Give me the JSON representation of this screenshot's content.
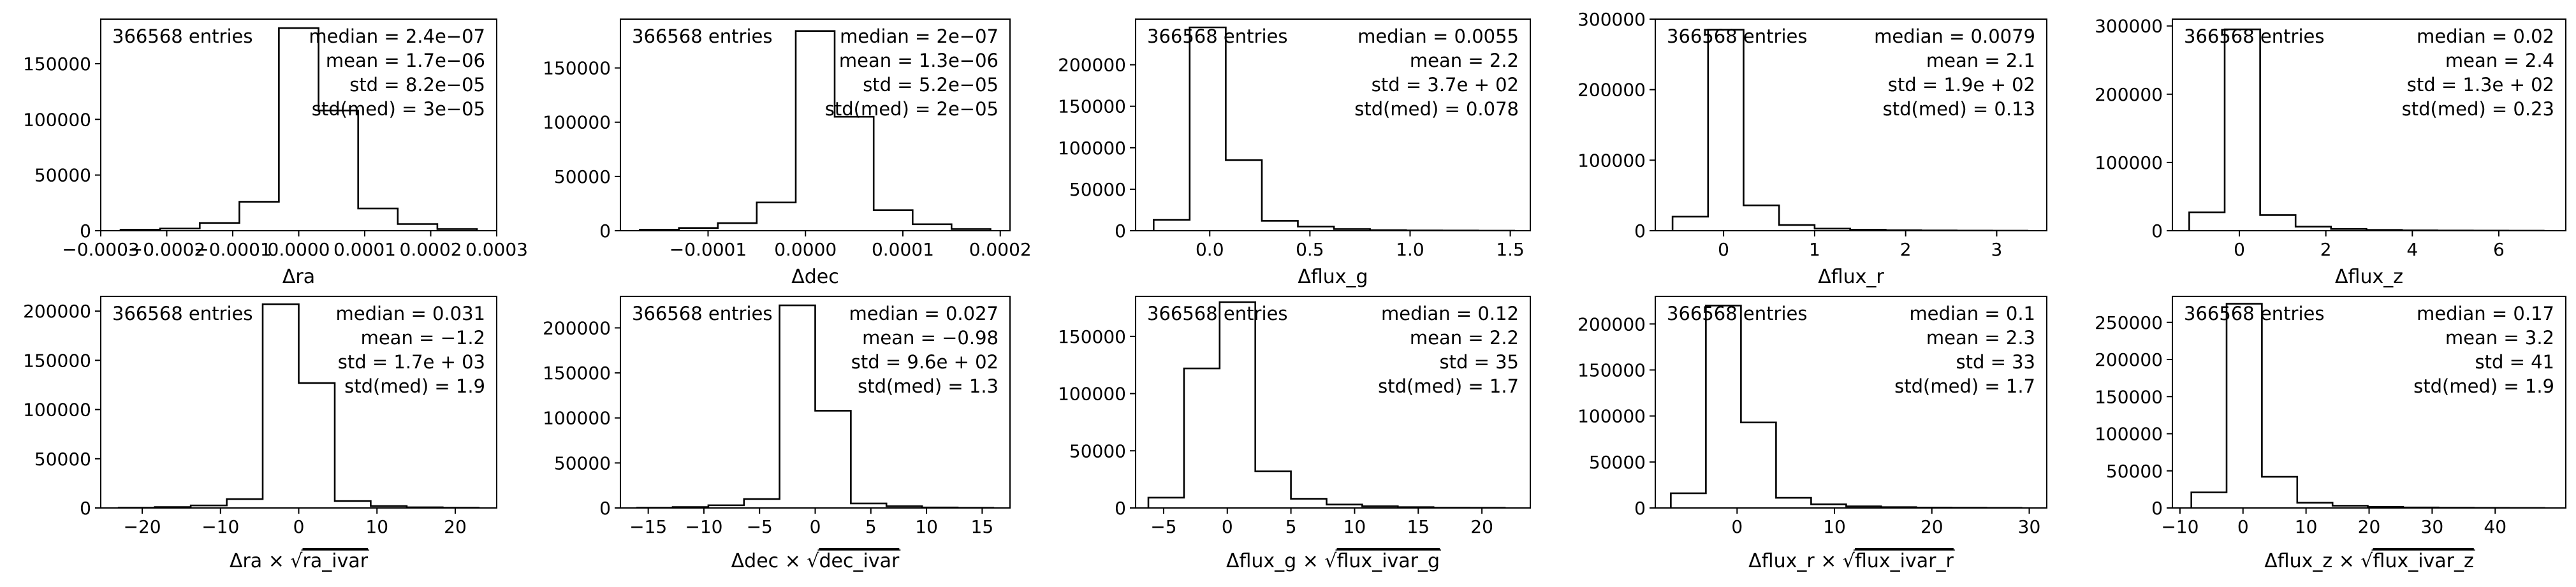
{
  "figure": {
    "background": "#ffffff",
    "line_color": "#000000"
  },
  "chart_data": [
    {
      "type": "histogram",
      "xlabel": "Δra",
      "entries_label": "366568 entries",
      "stats": [
        "median = 2.4e−07",
        "mean = 1.7e−06",
        "std = 8.2e−05",
        "std(med) = 3e−05"
      ],
      "xlim": [
        -0.0003,
        0.0003
      ],
      "ylim": [
        0,
        190000
      ],
      "xticks": [
        -0.0003,
        -0.0002,
        -0.0001,
        0.0,
        0.0001,
        0.0002,
        0.0003
      ],
      "xtick_labels": [
        "−0.0003",
        "−0.0002",
        "−0.0001",
        "0.0000",
        "0.0001",
        "0.0002",
        "0.0003"
      ],
      "yticks": [
        0,
        50000,
        100000,
        150000
      ],
      "ytick_labels": [
        "0",
        "50000",
        "100000",
        "150000"
      ],
      "bin_edges": [
        -0.00027,
        -0.00021,
        -0.00015,
        -9e-05,
        -3e-05,
        3e-05,
        9e-05,
        0.00015,
        0.00021,
        0.00027
      ],
      "counts": [
        1000,
        2000,
        7000,
        26000,
        182000,
        108000,
        20000,
        6000,
        1500
      ]
    },
    {
      "type": "histogram",
      "xlabel": "Δdec",
      "entries_label": "366568 entries",
      "stats": [
        "median = 2e−07",
        "mean = 1.3e−06",
        "std = 5.2e−05",
        "std(med) = 2e−05"
      ],
      "xlim": [
        -0.00019,
        0.00021
      ],
      "ylim": [
        0,
        195000
      ],
      "xticks": [
        -0.0001,
        0.0,
        0.0001,
        0.0002
      ],
      "xtick_labels": [
        "−0.0001",
        "0.0000",
        "0.0001",
        "0.0002"
      ],
      "yticks": [
        0,
        50000,
        100000,
        150000
      ],
      "ytick_labels": [
        "0",
        "50000",
        "100000",
        "150000"
      ],
      "bin_edges": [
        -0.00017,
        -0.00013,
        -9e-05,
        -5e-05,
        -1e-05,
        3e-05,
        7e-05,
        0.00011,
        0.00015,
        0.00019
      ],
      "counts": [
        1000,
        2500,
        7000,
        26000,
        184000,
        105000,
        19000,
        6000,
        1500
      ]
    },
    {
      "type": "histogram",
      "xlabel": "Δflux_g",
      "entries_label": "366568 entries",
      "stats": [
        "median = 0.0055",
        "mean = 2.2",
        "std = 3.7e + 02",
        "std(med) = 0.078"
      ],
      "xlim": [
        -0.37,
        1.6
      ],
      "ylim": [
        0,
        255000
      ],
      "xticks": [
        0.0,
        0.5,
        1.0,
        1.5
      ],
      "xtick_labels": [
        "0.0",
        "0.5",
        "1.0",
        "1.5"
      ],
      "yticks": [
        0,
        50000,
        100000,
        150000,
        200000
      ],
      "ytick_labels": [
        "0",
        "50000",
        "100000",
        "150000",
        "200000"
      ],
      "bin_edges": [
        -0.28,
        -0.1,
        0.08,
        0.26,
        0.44,
        0.62,
        0.8,
        0.98,
        1.16,
        1.34,
        1.52
      ],
      "counts": [
        13000,
        245000,
        85000,
        12000,
        5000,
        2000,
        800,
        400,
        200,
        100
      ]
    },
    {
      "type": "histogram",
      "xlabel": "Δflux_r",
      "entries_label": "366568 entries",
      "stats": [
        "median = 0.0079",
        "mean = 2.1",
        "std = 1.9e + 02",
        "std(med) = 0.13"
      ],
      "xlim": [
        -0.75,
        3.55
      ],
      "ylim": [
        0,
        300000
      ],
      "xticks": [
        0,
        1,
        2,
        3
      ],
      "xtick_labels": [
        "0",
        "1",
        "2",
        "3"
      ],
      "yticks": [
        0,
        100000,
        200000,
        300000
      ],
      "ytick_labels": [
        "0",
        "100000",
        "200000",
        "300000"
      ],
      "bin_edges": [
        -0.56,
        -0.17,
        0.22,
        0.61,
        1.0,
        1.39,
        1.78,
        2.17,
        2.56,
        2.95,
        3.34
      ],
      "counts": [
        20000,
        285000,
        36000,
        8000,
        3000,
        1500,
        700,
        400,
        200,
        100
      ]
    },
    {
      "type": "histogram",
      "xlabel": "Δflux_z",
      "entries_label": "366568 entries",
      "stats": [
        "median = 0.02",
        "mean = 2.4",
        "std = 1.3e + 02",
        "std(med) = 0.23"
      ],
      "xlim": [
        -1.55,
        7.55
      ],
      "ylim": [
        0,
        310000
      ],
      "xticks": [
        0,
        2,
        4,
        6
      ],
      "xtick_labels": [
        "0",
        "2",
        "4",
        "6"
      ],
      "yticks": [
        0,
        100000,
        200000,
        300000
      ],
      "ytick_labels": [
        "0",
        "100000",
        "200000",
        "300000"
      ],
      "bin_edges": [
        -1.16,
        -0.34,
        0.48,
        1.3,
        2.12,
        2.94,
        3.76,
        4.58,
        5.4,
        6.22,
        7.04
      ],
      "counts": [
        27000,
        295000,
        23000,
        6000,
        2500,
        1200,
        600,
        300,
        150,
        80
      ]
    },
    {
      "type": "histogram",
      "xlabel": "Δra × √ra_ivar",
      "xlabel_parts": [
        "Δra × ",
        "ra_ivar"
      ],
      "entries_label": "366568 entries",
      "stats": [
        "median = 0.031",
        "mean = −1.2",
        "std = 1.7e + 03",
        "std(med) = 1.9"
      ],
      "xlim": [
        -25.3,
        25.3
      ],
      "ylim": [
        0,
        215000
      ],
      "xticks": [
        -20,
        -10,
        0,
        10,
        20
      ],
      "xtick_labels": [
        "−20",
        "−10",
        "0",
        "10",
        "20"
      ],
      "yticks": [
        0,
        50000,
        100000,
        150000,
        200000
      ],
      "ytick_labels": [
        "0",
        "50000",
        "100000",
        "150000",
        "200000"
      ],
      "bin_edges": [
        -23,
        -18.4,
        -13.8,
        -9.2,
        -4.6,
        0,
        4.6,
        9.2,
        13.8,
        18.4,
        23
      ],
      "counts": [
        300,
        1000,
        2500,
        9000,
        207000,
        127000,
        7000,
        2000,
        700,
        300
      ]
    },
    {
      "type": "histogram",
      "xlabel": "Δdec × √dec_ivar",
      "xlabel_parts": [
        "Δdec × ",
        "dec_ivar"
      ],
      "entries_label": "366568 entries",
      "stats": [
        "median = 0.027",
        "mean = −0.98",
        "std = 9.6e + 02",
        "std(med) = 1.3"
      ],
      "xlim": [
        -17.5,
        17.5
      ],
      "ylim": [
        0,
        235000
      ],
      "xticks": [
        -15,
        -10,
        -5,
        0,
        5,
        10,
        15
      ],
      "xtick_labels": [
        "−15",
        "−10",
        "−5",
        "0",
        "5",
        "10",
        "15"
      ],
      "yticks": [
        0,
        50000,
        100000,
        150000,
        200000
      ],
      "ytick_labels": [
        "0",
        "50000",
        "100000",
        "150000",
        "200000"
      ],
      "bin_edges": [
        -16,
        -12.8,
        -9.6,
        -6.4,
        -3.2,
        0,
        3.2,
        6.4,
        9.6,
        12.8,
        16
      ],
      "counts": [
        300,
        1000,
        3000,
        10000,
        225000,
        108000,
        5000,
        2000,
        600,
        200
      ]
    },
    {
      "type": "histogram",
      "xlabel": "Δflux_g × √flux_ivar_g",
      "xlabel_parts": [
        "Δflux_g × ",
        "flux_ivar_g"
      ],
      "entries_label": "366568 entries",
      "stats": [
        "median = 0.12",
        "mean = 2.2",
        "std = 35",
        "std(med) = 1.7"
      ],
      "xlim": [
        -7.2,
        23.8
      ],
      "ylim": [
        0,
        185000
      ],
      "xticks": [
        -5,
        0,
        5,
        10,
        15,
        20
      ],
      "xtick_labels": [
        "−5",
        "0",
        "5",
        "10",
        "15",
        "20"
      ],
      "yticks": [
        0,
        50000,
        100000,
        150000
      ],
      "ytick_labels": [
        "0",
        "50000",
        "100000",
        "150000"
      ],
      "bin_edges": [
        -6.2,
        -3.4,
        -0.6,
        2.2,
        5.0,
        7.8,
        10.6,
        13.4,
        16.2,
        19.0,
        21.8
      ],
      "counts": [
        9000,
        122000,
        180000,
        32000,
        8000,
        3000,
        1500,
        700,
        300,
        150
      ]
    },
    {
      "type": "histogram",
      "xlabel": "Δflux_r × √flux_ivar_r",
      "xlabel_parts": [
        "Δflux_r × ",
        "flux_ivar_r"
      ],
      "entries_label": "366568 entries",
      "stats": [
        "median = 0.1",
        "mean = 2.3",
        "std = 33",
        "std(med) = 1.7"
      ],
      "xlim": [
        -8.4,
        31.8
      ],
      "ylim": [
        0,
        230000
      ],
      "xticks": [
        0,
        10,
        20,
        30
      ],
      "xtick_labels": [
        "0",
        "10",
        "20",
        "30"
      ],
      "yticks": [
        0,
        50000,
        100000,
        150000,
        200000
      ],
      "ytick_labels": [
        "0",
        "50000",
        "100000",
        "150000",
        "200000"
      ],
      "bin_edges": [
        -6.8,
        -3.2,
        0.4,
        4.0,
        7.6,
        11.2,
        14.8,
        18.4,
        22.0,
        25.6,
        29.2
      ],
      "counts": [
        16000,
        220000,
        93000,
        11000,
        4000,
        1800,
        900,
        500,
        250,
        120
      ]
    },
    {
      "type": "histogram",
      "xlabel": "Δflux_z × √flux_ivar_z",
      "xlabel_parts": [
        "Δflux_z × ",
        "flux_ivar_z"
      ],
      "entries_label": "366568 entries",
      "stats": [
        "median = 0.17",
        "mean = 3.2",
        "std = 41",
        "std(med) = 1.9"
      ],
      "xlim": [
        -11.2,
        51.2
      ],
      "ylim": [
        0,
        285000
      ],
      "xticks": [
        -10,
        0,
        10,
        20,
        30,
        40
      ],
      "xtick_labels": [
        "−10",
        "0",
        "10",
        "20",
        "30",
        "40"
      ],
      "yticks": [
        0,
        50000,
        100000,
        150000,
        200000,
        250000
      ],
      "ytick_labels": [
        "0",
        "50000",
        "100000",
        "150000",
        "200000",
        "250000"
      ],
      "bin_edges": [
        -8.2,
        -2.6,
        3.0,
        8.6,
        14.2,
        19.8,
        25.4,
        31.0,
        36.6,
        42.2,
        47.8
      ],
      "counts": [
        21000,
        275000,
        42000,
        7000,
        3000,
        1500,
        700,
        350,
        180,
        90
      ]
    }
  ]
}
